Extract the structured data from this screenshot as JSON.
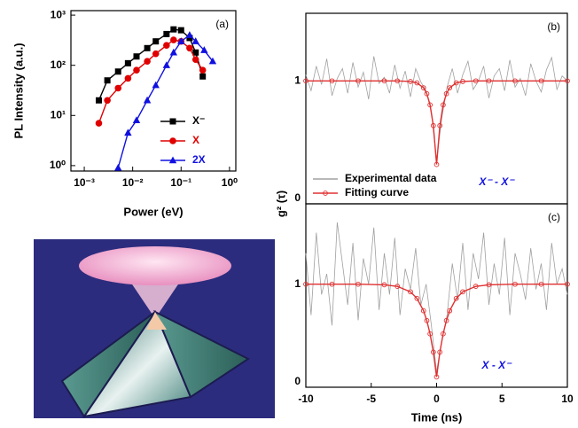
{
  "chart_data": [
    {
      "type": "line",
      "xlabel": "Power (eV)",
      "ylabel": "PL Intensity (a.u.)",
      "panel_label": "(a)",
      "xlog": true,
      "ylog": true,
      "xlim": [
        0.00053,
        1.35
      ],
      "ylim": [
        0.78,
        1230
      ],
      "xticks": [
        {
          "value": 0.001,
          "label": "10⁻³"
        },
        {
          "value": 0.01,
          "label": "10⁻²"
        },
        {
          "value": 0.1,
          "label": "10⁻¹"
        },
        {
          "value": 1,
          "label": "10⁰"
        }
      ],
      "yticks": [
        {
          "value": 1,
          "label": "10⁰"
        },
        {
          "value": 10,
          "label": "10¹"
        },
        {
          "value": 100,
          "label": "10²"
        },
        {
          "value": 1000,
          "label": "10³"
        }
      ],
      "legend": "lower right",
      "legend_text_colored": true,
      "series": [
        {
          "name": "X⁻",
          "color": "#000000",
          "marker": "square",
          "x": [
            0.002,
            0.003,
            0.005,
            0.008,
            0.012,
            0.02,
            0.03,
            0.05,
            0.07,
            0.1,
            0.15,
            0.2,
            0.28
          ],
          "values": [
            20,
            50,
            75,
            110,
            150,
            220,
            300,
            420,
            520,
            500,
            350,
            180,
            60
          ]
        },
        {
          "name": "X",
          "color": "#e00000",
          "marker": "circle",
          "x": [
            0.002,
            0.003,
            0.005,
            0.008,
            0.012,
            0.02,
            0.03,
            0.05,
            0.07,
            0.1,
            0.15,
            0.2,
            0.28
          ],
          "values": [
            7,
            20,
            35,
            55,
            80,
            120,
            170,
            250,
            320,
            300,
            220,
            130,
            80
          ]
        },
        {
          "name": "2X",
          "color": "#1010e0",
          "marker": "triangle",
          "x": [
            0.005,
            0.008,
            0.012,
            0.02,
            0.03,
            0.05,
            0.07,
            0.1,
            0.15,
            0.2,
            0.3,
            0.45
          ],
          "values": [
            0.9,
            4.5,
            8,
            20,
            40,
            100,
            180,
            300,
            400,
            300,
            200,
            120
          ]
        }
      ]
    },
    {
      "type": "line",
      "ylabel": "g² (τ)",
      "panel_label": "(b)",
      "annotation": "X⁻ - X⁻",
      "annotation_color": "#1010e0",
      "xlim": [
        -10,
        10
      ],
      "ylim": [
        0,
        1.55
      ],
      "yticks": [
        0,
        1
      ],
      "legend": "lower left",
      "legend_text_colored": false,
      "series": [
        {
          "name": "Experimental data",
          "color": "#a0a0a0",
          "marker": "none",
          "x": [
            -10,
            -9.6,
            -9.2,
            -8.8,
            -8.4,
            -8,
            -7.6,
            -7.2,
            -6.8,
            -6.4,
            -6,
            -5.6,
            -5.2,
            -4.8,
            -4.4,
            -4,
            -3.6,
            -3.2,
            -2.8,
            -2.4,
            -2,
            -1.6,
            -1.2,
            -0.8,
            -0.4,
            0,
            0.4,
            0.8,
            1.2,
            1.6,
            2,
            2.4,
            2.8,
            3.2,
            3.6,
            4,
            4.4,
            4.8,
            5.2,
            5.6,
            6,
            6.4,
            6.8,
            7.2,
            7.6,
            8,
            8.4,
            8.8,
            9.2,
            9.6,
            10
          ],
          "values": [
            1.05,
            0.92,
            1.12,
            0.97,
            1.18,
            0.88,
            1.02,
            1.1,
            0.9,
            1.15,
            0.95,
            1.07,
            0.85,
            1.2,
            0.98,
            1.03,
            0.9,
            1.13,
            0.94,
            1.08,
            0.87,
            1.1,
            0.99,
            0.92,
            0.75,
            0.35,
            0.7,
            0.95,
            1.1,
            0.9,
            1.05,
            1.16,
            0.93,
            1.0,
            1.12,
            0.86,
            1.04,
            1.1,
            0.92,
            1.17,
            0.95,
            1.02,
            0.88,
            1.14,
            1.0,
            0.91,
            1.09,
            1.19,
            0.93,
            1.04,
            1.0
          ]
        },
        {
          "name": "Fitting curve",
          "color": "#e03030",
          "marker": "circle-open",
          "x": [
            -10,
            -8,
            -6,
            -4,
            -3,
            -2,
            -1.5,
            -1,
            -0.75,
            -0.5,
            -0.25,
            0,
            0.25,
            0.5,
            0.75,
            1,
            1.5,
            2,
            3,
            4,
            6,
            8,
            10
          ],
          "values": [
            1,
            1,
            1,
            1,
            1,
            0.995,
            0.984,
            0.944,
            0.896,
            0.805,
            0.636,
            0.32,
            0.636,
            0.805,
            0.896,
            0.944,
            0.984,
            0.995,
            1,
            1,
            1,
            1,
            1
          ]
        }
      ]
    },
    {
      "type": "line",
      "xlabel": "Time (ns)",
      "panel_label": "(c)",
      "annotation": "X - X⁻",
      "annotation_color": "#1010e0",
      "xlim": [
        -10,
        10
      ],
      "ylim": [
        0,
        1.78
      ],
      "xticks": [
        -10,
        -5,
        0,
        5,
        10
      ],
      "yticks": [
        0,
        1
      ],
      "series": [
        {
          "color": "#a0a0a0",
          "marker": "none",
          "x": [
            -10,
            -9.6,
            -9.2,
            -8.8,
            -8.4,
            -8,
            -7.6,
            -7.2,
            -6.8,
            -6.4,
            -6,
            -5.6,
            -5.2,
            -4.8,
            -4.4,
            -4,
            -3.6,
            -3.2,
            -2.8,
            -2.4,
            -2,
            -1.6,
            -1.2,
            -0.8,
            -0.4,
            0,
            0.4,
            0.8,
            1.2,
            1.6,
            2,
            2.4,
            2.8,
            3.2,
            3.6,
            4,
            4.4,
            4.8,
            5.2,
            5.6,
            6,
            6.4,
            6.8,
            7.2,
            7.6,
            8,
            8.4,
            8.8,
            9.2,
            9.6,
            10
          ],
          "values": [
            1.3,
            0.7,
            1.5,
            0.9,
            1.1,
            0.6,
            1.6,
            1.2,
            0.8,
            1.4,
            0.65,
            1.25,
            1.0,
            1.55,
            0.75,
            1.3,
            0.9,
            1.45,
            0.7,
            1.15,
            0.95,
            1.35,
            0.8,
            1.0,
            0.6,
            0.15,
            0.45,
            0.7,
            1.2,
            0.85,
            1.4,
            0.75,
            1.3,
            1.05,
            1.5,
            0.8,
            1.2,
            0.9,
            1.45,
            0.7,
            1.3,
            1.1,
            0.85,
            1.35,
            0.95,
            1.2,
            0.75,
            1.4,
            1.0,
            1.15,
            0.9
          ]
        },
        {
          "color": "#e03030",
          "marker": "circle-open",
          "x": [
            -10,
            -8,
            -6,
            -4,
            -3,
            -2,
            -1.5,
            -1,
            -0.75,
            -0.5,
            -0.25,
            0,
            0.25,
            0.5,
            0.75,
            1,
            1.5,
            2,
            3,
            4,
            6,
            8,
            10
          ],
          "values": [
            1,
            1,
            1,
            0.994,
            0.979,
            0.926,
            0.862,
            0.742,
            0.647,
            0.518,
            0.341,
            0.1,
            0.341,
            0.518,
            0.647,
            0.742,
            0.862,
            0.926,
            0.979,
            0.994,
            1,
            1,
            1
          ]
        }
      ]
    }
  ]
}
